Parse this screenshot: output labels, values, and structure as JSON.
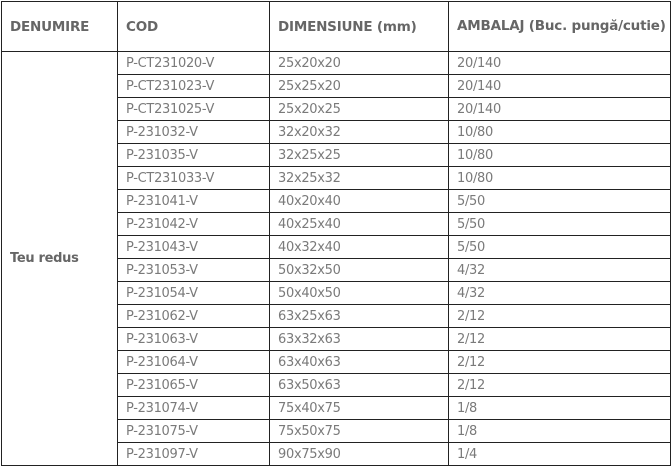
{
  "headers": [
    "DENUMIRE",
    "COD",
    "DIMENSIUNE (mm)",
    "AMBALAJ (Buc. pungă/cutie)"
  ],
  "product_name": "Teu redus",
  "rows": [
    {
      "cod": "P-CT231020-V",
      "dim": "25x20x20",
      "amb": "20/140"
    },
    {
      "cod": "P-CT231023-V",
      "dim": "25x25x20",
      "amb": "20/140"
    },
    {
      "cod": "P-CT231025-V",
      "dim": "25x20x25",
      "amb": "20/140"
    },
    {
      "cod": "P-231032-V",
      "dim": "32x20x32",
      "amb": "10/80"
    },
    {
      "cod": "P-231035-V",
      "dim": "32x25x25",
      "amb": "10/80"
    },
    {
      "cod": "P-CT231033-V",
      "dim": "32x25x32",
      "amb": "10/80"
    },
    {
      "cod": "P-231041-V",
      "dim": "40x20x40",
      "amb": "5/50"
    },
    {
      "cod": "P-231042-V",
      "dim": "40x25x40",
      "amb": "5/50"
    },
    {
      "cod": "P-231043-V",
      "dim": "40x32x40",
      "amb": "5/50"
    },
    {
      "cod": "P-231053-V",
      "dim": "50x32x50",
      "amb": "4/32"
    },
    {
      "cod": "P-231054-V",
      "dim": "50x40x50",
      "amb": "4/32"
    },
    {
      "cod": "P-231062-V",
      "dim": "63x25x63",
      "amb": "2/12"
    },
    {
      "cod": "P-231063-V",
      "dim": "63x32x63",
      "amb": "2/12"
    },
    {
      "cod": "P-231064-V",
      "dim": "63x40x63",
      "amb": "2/12"
    },
    {
      "cod": "P-231065-V",
      "dim": "63x50x63",
      "amb": "2/12"
    },
    {
      "cod": "P-231074-V",
      "dim": "75x40x75",
      "amb": "1/8"
    },
    {
      "cod": "P-231075-V",
      "dim": "75x50x75",
      "amb": "1/8"
    },
    {
      "cod": "P-231097-V",
      "dim": "90x75x90",
      "amb": "1/4"
    }
  ]
}
